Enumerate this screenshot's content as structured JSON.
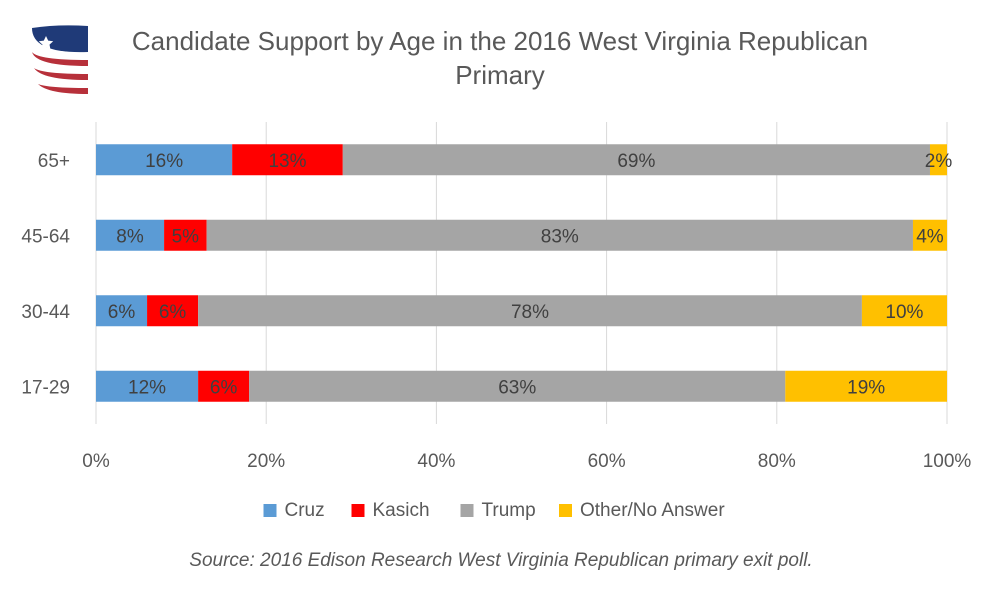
{
  "title": "Candidate Support by Age in the 2016 West Virginia Republican Primary",
  "source": "Source: 2016 Edison Research West Virginia Republican primary exit poll.",
  "logo_colors": {
    "blue": "#1f3a78",
    "red": "#b7303a",
    "star": "#ffffff"
  },
  "chart_data": {
    "type": "bar",
    "orientation": "horizontal",
    "stacked": true,
    "categories": [
      "65+",
      "45-64",
      "30-44",
      "17-29"
    ],
    "series": [
      {
        "name": "Cruz",
        "color": "#5b9bd5",
        "values": [
          16,
          8,
          6,
          12
        ],
        "labels": [
          "16%",
          "8%",
          "6%",
          "12%"
        ]
      },
      {
        "name": "Kasich",
        "color": "#ff0000",
        "values": [
          13,
          5,
          6,
          6
        ],
        "labels": [
          "13%",
          "5%",
          "6%",
          "6%"
        ]
      },
      {
        "name": "Trump",
        "color": "#a5a5a5",
        "values": [
          69,
          83,
          78,
          63
        ],
        "labels": [
          "69%",
          "83%",
          "78%",
          "63%"
        ]
      },
      {
        "name": "Other/No Answer",
        "color": "#ffc000",
        "values": [
          2,
          4,
          10,
          19
        ],
        "labels": [
          "2%",
          "4%",
          "10%",
          "19%"
        ]
      }
    ],
    "xlim": [
      0,
      100
    ],
    "xticks": [
      "0%",
      "20%",
      "40%",
      "60%",
      "80%",
      "100%"
    ],
    "grid": true,
    "legend_position": "bottom"
  }
}
